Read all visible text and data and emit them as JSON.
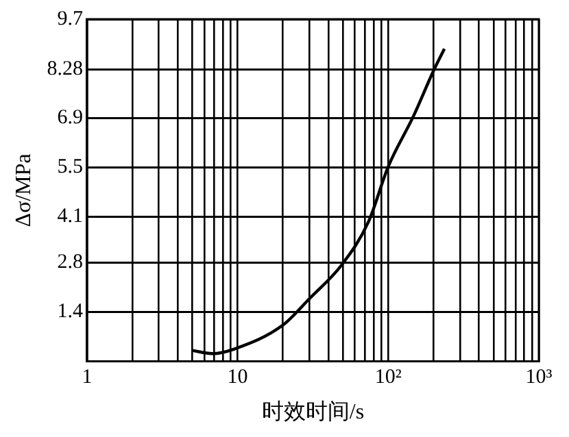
{
  "chart_data": {
    "type": "line",
    "xlabel": "时效时间/s",
    "ylabel": "Δσ/MPa",
    "log": "x",
    "x": [
      5,
      6.8,
      9.5,
      20,
      30,
      49,
      74,
      100,
      147,
      200,
      236
    ],
    "series": [
      {
        "color": "#000000",
        "values": [
          0.31,
          0.22,
          0.35,
          1.03,
          1.78,
          2.73,
          3.96,
          5.52,
          6.95,
          8.24,
          8.86
        ]
      }
    ],
    "xlim": [
      1,
      1000
    ],
    "ylim": [
      0,
      9.7
    ],
    "xticks": [
      1,
      {
        "value": 2,
        "label": null
      },
      {
        "value": 3,
        "label": null
      },
      {
        "value": 4,
        "label": null
      },
      {
        "value": 5,
        "label": null
      },
      {
        "value": 6,
        "label": null
      },
      {
        "value": 7,
        "label": null
      },
      {
        "value": 8,
        "label": null
      },
      {
        "value": 9,
        "label": null
      },
      10,
      {
        "value": 20,
        "label": null
      },
      {
        "value": 30,
        "label": null
      },
      {
        "value": 40,
        "label": null
      },
      {
        "value": 50,
        "label": null
      },
      {
        "value": 60,
        "label": null
      },
      {
        "value": 70,
        "label": null
      },
      {
        "value": 80,
        "label": null
      },
      {
        "value": 90,
        "label": null
      },
      {
        "value": 100,
        "label": "10²"
      },
      {
        "value": 200,
        "label": null
      },
      {
        "value": 300,
        "label": null
      },
      {
        "value": 400,
        "label": null
      },
      {
        "value": 500,
        "label": null
      },
      {
        "value": 600,
        "label": null
      },
      {
        "value": 700,
        "label": null
      },
      {
        "value": 800,
        "label": null
      },
      {
        "value": 900,
        "label": null
      },
      {
        "value": 1000,
        "label": "10³"
      }
    ],
    "yticks": [
      1.4,
      2.8,
      4.1,
      5.5,
      6.9,
      8.28,
      9.7
    ],
    "grid": true,
    "legend": false,
    "marker": "none",
    "line_style": "solid"
  }
}
